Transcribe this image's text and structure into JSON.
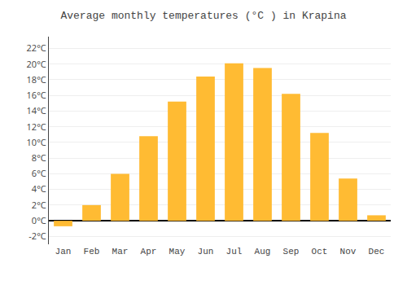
{
  "chart_data": {
    "type": "bar",
    "title": "Average monthly temperatures (°C ) in Krapina",
    "categories": [
      "Jan",
      "Feb",
      "Mar",
      "Apr",
      "May",
      "Jun",
      "Jul",
      "Aug",
      "Sep",
      "Oct",
      "Nov",
      "Dec"
    ],
    "values": [
      -0.7,
      2.0,
      6.0,
      10.8,
      15.2,
      18.4,
      20.1,
      19.5,
      16.2,
      11.2,
      5.4,
      0.7
    ],
    "color": "#FFBB33",
    "ylim": [
      -3.0,
      23.5
    ],
    "yticks": [
      {
        "value": -2,
        "label": "-2°C"
      },
      {
        "value": 0,
        "label": "0°C"
      },
      {
        "value": 2,
        "label": "2°C"
      },
      {
        "value": 4,
        "label": "4°C"
      },
      {
        "value": 6,
        "label": "6°C"
      },
      {
        "value": 8,
        "label": "8°C"
      },
      {
        "value": 10,
        "label": "10°C"
      },
      {
        "value": 12,
        "label": "12°C"
      },
      {
        "value": 14,
        "label": "14°C"
      },
      {
        "value": 16,
        "label": "16°C"
      },
      {
        "value": 18,
        "label": "18°C"
      },
      {
        "value": 20,
        "label": "20°C"
      },
      {
        "value": 22,
        "label": "22°C"
      }
    ],
    "grid": true
  }
}
